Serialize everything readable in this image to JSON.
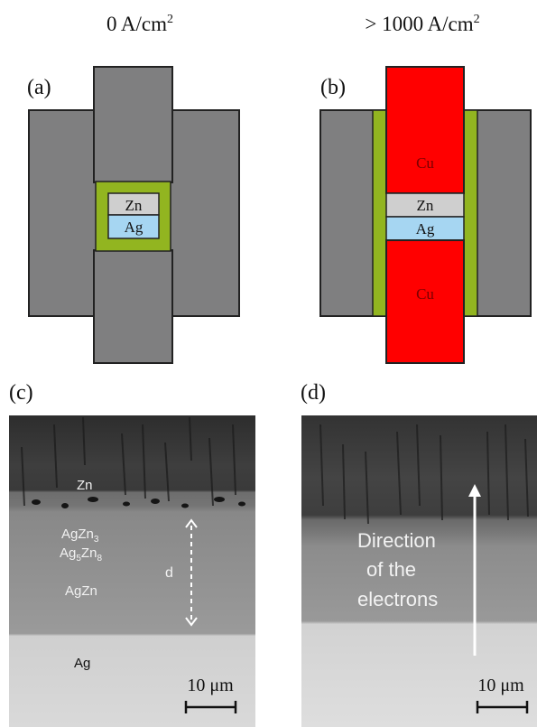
{
  "headers": {
    "left": "0 A/cm",
    "left_sup": "2",
    "right": "> 1000 A/cm",
    "right_sup": "2"
  },
  "panels": {
    "a": {
      "label": "(a)",
      "layer_top": "Zn",
      "layer_bottom": "Ag"
    },
    "b": {
      "label": "(b)",
      "top_block": "Cu",
      "layer_top": "Zn",
      "layer_bottom": "Ag",
      "bottom_block": "Cu"
    },
    "c": {
      "label": "(c)",
      "zn": "Zn",
      "agzn3_base": "AgZn",
      "agzn3_sub": "3",
      "ag5zn8_a": "Ag",
      "ag5zn8_sub1": "5",
      "ag5zn8_b": "Zn",
      "ag5zn8_sub2": "8",
      "agzn": "AgZn",
      "d": "d",
      "ag": "Ag",
      "scale": "10 μm"
    },
    "d": {
      "label": "(d)",
      "arrow_line1": "Direction",
      "arrow_line2": "of the",
      "arrow_line3": "electrons",
      "scale": "10 μm"
    }
  },
  "colors": {
    "grey_block": "#7f7f80",
    "outline": "#222222",
    "green_frame": "#92b520",
    "zn_layer": "#cfcfcf",
    "ag_layer": "#a6d6f2",
    "cu_block": "#ff0000",
    "cu_text": "#7a0000"
  }
}
